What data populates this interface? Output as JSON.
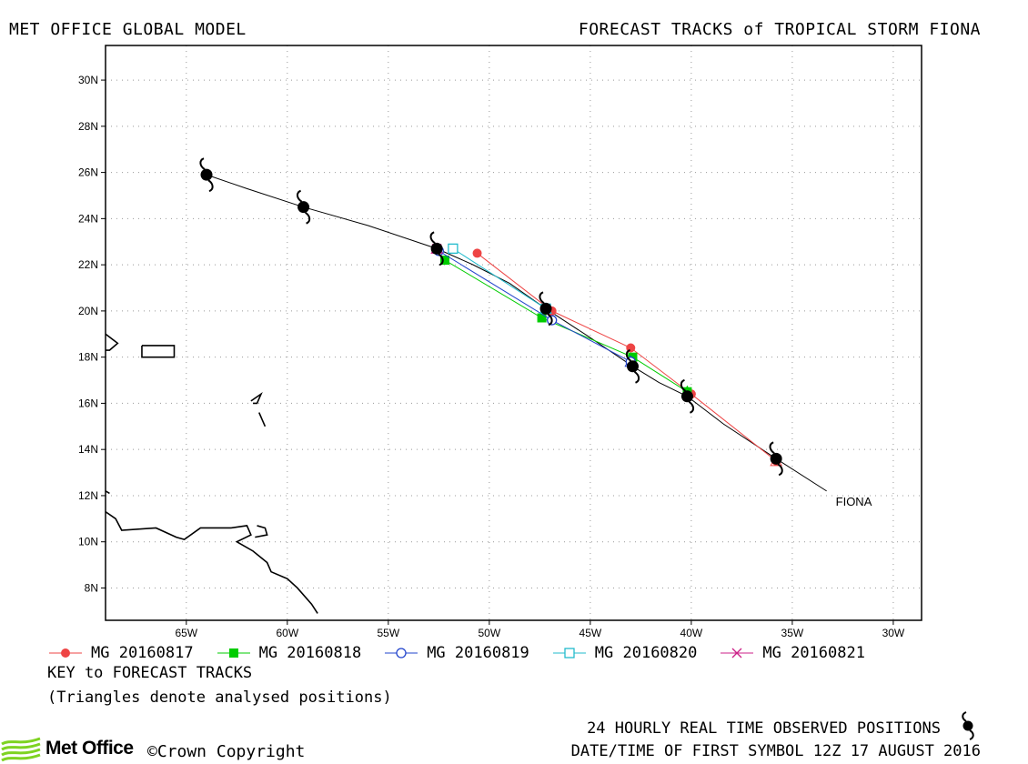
{
  "header": {
    "left_title": "MET OFFICE GLOBAL MODEL",
    "right_title": "FORECAST TRACKS of TROPICAL STORM FIONA"
  },
  "map": {
    "lon_range": [
      -69,
      -28.6
    ],
    "lat_range": [
      6.6,
      31.5
    ],
    "lon_ticks": [
      -65,
      -60,
      -55,
      -50,
      -45,
      -40,
      -35,
      -30
    ],
    "lon_tick_labels": [
      "65W",
      "60W",
      "55W",
      "50W",
      "45W",
      "40W",
      "35W",
      "30W"
    ],
    "lat_ticks": [
      8,
      10,
      12,
      14,
      16,
      18,
      20,
      22,
      24,
      26,
      28,
      30
    ],
    "lat_tick_labels": [
      "8N",
      "10N",
      "12N",
      "14N",
      "16N",
      "18N",
      "20N",
      "22N",
      "24N",
      "26N",
      "28N",
      "30N"
    ],
    "grid": "dotted",
    "storm_label": "FIONA",
    "observed_track": [
      [
        -33.3,
        12.2
      ],
      [
        -35.8,
        13.6
      ],
      [
        -38.4,
        15.1
      ],
      [
        -40.2,
        16.3
      ],
      [
        -41.6,
        16.9
      ],
      [
        -42.9,
        17.6
      ],
      [
        -45.1,
        18.9
      ],
      [
        -47.2,
        20.1
      ],
      [
        -49.0,
        21.2
      ],
      [
        -50.8,
        22.0
      ],
      [
        -52.6,
        22.7
      ],
      [
        -56.0,
        23.7
      ],
      [
        -59.2,
        24.5
      ],
      [
        -62.0,
        25.3
      ],
      [
        -64.0,
        25.9
      ]
    ],
    "observed_positions": [
      [
        -35.8,
        13.6
      ],
      [
        -40.2,
        16.3
      ],
      [
        -42.9,
        17.6
      ],
      [
        -47.2,
        20.1
      ],
      [
        -52.6,
        22.7
      ],
      [
        -59.2,
        24.5
      ],
      [
        -64.0,
        25.9
      ]
    ],
    "coastlines": [
      [
        [
          -69,
          12.2
        ],
        [
          -68.8,
          12.1
        ]
      ],
      [
        [
          -69,
          11.3
        ],
        [
          -68.5,
          11.0
        ],
        [
          -68.2,
          10.5
        ],
        [
          -66.5,
          10.6
        ],
        [
          -65.5,
          10.2
        ],
        [
          -65.1,
          10.1
        ],
        [
          -64.3,
          10.6
        ],
        [
          -62.8,
          10.6
        ],
        [
          -62.0,
          10.7
        ],
        [
          -61.8,
          10.3
        ],
        [
          -62.5,
          10.0
        ],
        [
          -61.7,
          9.6
        ],
        [
          -61.0,
          9.1
        ],
        [
          -60.8,
          8.7
        ],
        [
          -60.0,
          8.4
        ],
        [
          -59.5,
          8.0
        ],
        [
          -58.8,
          7.3
        ],
        [
          -58.5,
          6.9
        ]
      ],
      [
        [
          -61.5,
          10.7
        ],
        [
          -61.1,
          10.6
        ],
        [
          -61.0,
          10.3
        ],
        [
          -61.6,
          10.2
        ]
      ],
      [
        [
          -69,
          19.0
        ],
        [
          -68.4,
          18.6
        ],
        [
          -68.8,
          18.3
        ],
        [
          -69,
          18.3
        ]
      ],
      [
        [
          -67.2,
          18.5
        ],
        [
          -65.6,
          18.5
        ],
        [
          -65.6,
          18.0
        ],
        [
          -67.2,
          18.0
        ],
        [
          -67.2,
          18.5
        ]
      ],
      [
        [
          -61.8,
          16.1
        ],
        [
          -61.3,
          16.4
        ],
        [
          -61.5,
          16.0
        ],
        [
          -61.7,
          16.0
        ]
      ],
      [
        [
          -61.4,
          15.6
        ],
        [
          -61.1,
          15.0
        ]
      ]
    ]
  },
  "chart_data": {
    "type": "map",
    "series": [
      {
        "name": "MG 20160817",
        "color": "#ee4444",
        "marker": "filled-circle",
        "points": [
          [
            -35.8,
            13.5
          ],
          [
            -40.0,
            16.4
          ],
          [
            -43.0,
            18.4
          ],
          [
            -46.9,
            20.0
          ],
          [
            -50.6,
            22.5
          ]
        ]
      },
      {
        "name": "MG 20160818",
        "color": "#00cc00",
        "marker": "filled-square",
        "points": [
          [
            -40.2,
            16.5
          ],
          [
            -42.9,
            18.0
          ],
          [
            -47.4,
            19.7
          ],
          [
            -52.2,
            22.2
          ]
        ]
      },
      {
        "name": "MG 20160819",
        "color": "#2244cc",
        "marker": "open-circle",
        "points": [
          [
            -43.0,
            17.8
          ],
          [
            -46.9,
            19.6
          ],
          [
            -52.5,
            22.6
          ]
        ]
      },
      {
        "name": "MG 20160820",
        "color": "#22bbcc",
        "marker": "open-square",
        "points": [
          [
            -47.2,
            20.1
          ],
          [
            -51.8,
            22.7
          ]
        ]
      },
      {
        "name": "MG 20160821",
        "color": "#cc2288",
        "marker": "cross",
        "points": [
          [
            -52.6,
            22.7
          ]
        ]
      }
    ]
  },
  "legend": {
    "items": [
      {
        "label": "MG 20160817",
        "color": "#ee4444",
        "marker": "filled-circle"
      },
      {
        "label": "MG 20160818",
        "color": "#00cc00",
        "marker": "filled-square"
      },
      {
        "label": "MG 20160819",
        "color": "#2244cc",
        "marker": "open-circle"
      },
      {
        "label": "MG 20160820",
        "color": "#22bbcc",
        "marker": "open-square"
      },
      {
        "label": "MG 20160821",
        "color": "#cc2288",
        "marker": "cross"
      }
    ]
  },
  "footer": {
    "key_title": "KEY to FORECAST TRACKS",
    "key_note": "(Triangles denote analysed positions)",
    "observed_note": "24 HOURLY REAL TIME OBSERVED POSITIONS",
    "date_note": "DATE/TIME OF FIRST SYMBOL 12Z 17 AUGUST 2016",
    "logo_text": "Met Office",
    "copyright": "©Crown Copyright"
  }
}
